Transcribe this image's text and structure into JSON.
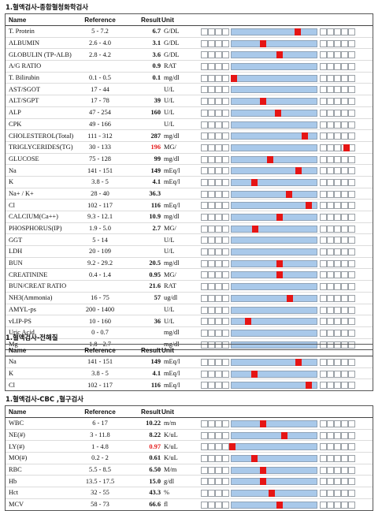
{
  "colors": {
    "normal_zone": "#a9c9ea",
    "marker": "#e51515",
    "abnormal_text": "#e41c1c"
  },
  "headers": {
    "name": "Name",
    "reference": "Reference",
    "result": "Result",
    "unit": "Unit"
  },
  "sections": [
    {
      "title": "1.혈액검사-종합혈청화학검사",
      "rows": [
        {
          "name": "T. Protein",
          "ref": "5 - 7.2",
          "result": "6.7",
          "unit": "G/DL",
          "level": 0.79
        },
        {
          "name": "ALBUMIN",
          "ref": "2.6 - 4.0",
          "result": "3.1",
          "unit": "G/DL",
          "level": 0.36
        },
        {
          "name": "GLOBULIN (TP-ALB)",
          "ref": "2.8 - 4.2",
          "result": "3.6",
          "unit": "G/DL",
          "level": 0.57
        },
        {
          "name": "A/G RATIO",
          "ref": "",
          "result": "0.9",
          "unit": "RAT",
          "level": null
        },
        {
          "name": "T. Bilirubin",
          "ref": "0.1 - 0.5",
          "result": "0.1",
          "unit": "mg/dl",
          "level": 0.0
        },
        {
          "name": "AST/SGOT",
          "ref": "17 - 44",
          "result": "",
          "unit": "U/L",
          "level": null
        },
        {
          "name": "ALT/SGPT",
          "ref": "17 - 78",
          "result": "39",
          "unit": "U/L",
          "level": 0.36
        },
        {
          "name": "ALP",
          "ref": "47 - 254",
          "result": "160",
          "unit": "U/L",
          "level": 0.55
        },
        {
          "name": "CPK",
          "ref": "49 - 166",
          "result": "",
          "unit": "U/L",
          "level": null
        },
        {
          "name": "CHOLESTEROL(Total)",
          "ref": "111 - 312",
          "result": "287",
          "unit": "mg/dl",
          "level": 0.88
        },
        {
          "name": "TRIGLYCERIDES(TG)",
          "ref": "30 - 133",
          "result": "196",
          "unit": "MG/",
          "level": 1.0,
          "high": true
        },
        {
          "name": "GLUCOSE",
          "ref": "75 - 128",
          "result": "99",
          "unit": "mg/dl",
          "level": 0.45
        },
        {
          "name": "Na",
          "ref": "141 - 151",
          "result": "149",
          "unit": "mEq/l",
          "level": 0.8
        },
        {
          "name": "K",
          "ref": "3.8 - 5",
          "result": "4.1",
          "unit": "mEq/l",
          "level": 0.25
        },
        {
          "name": "Na+ / K+",
          "ref": "28 - 40",
          "result": "36.3",
          "unit": "",
          "level": 0.69
        },
        {
          "name": "Cl",
          "ref": "102 - 117",
          "result": "116",
          "unit": "mEq/l",
          "level": 0.93
        },
        {
          "name": "CALCIUM(Ca++)",
          "ref": "9.3 - 12.1",
          "result": "10.9",
          "unit": "mg/dl",
          "level": 0.57
        },
        {
          "name": "PHOSPHORUS(IP)",
          "ref": "1.9 - 5.0",
          "result": "2.7",
          "unit": "MG/",
          "level": 0.26
        },
        {
          "name": "GGT",
          "ref": "5 - 14",
          "result": "",
          "unit": "U/L",
          "level": null
        },
        {
          "name": "LDH",
          "ref": "20 - 109",
          "result": "",
          "unit": "U/L",
          "level": null
        },
        {
          "name": "BUN",
          "ref": "9.2 - 29.2",
          "result": "20.5",
          "unit": "mg/dl",
          "level": 0.57
        },
        {
          "name": "CREATININE",
          "ref": "0.4 - 1.4",
          "result": "0.95",
          "unit": "MG/",
          "level": 0.57
        },
        {
          "name": "BUN/CREAT RATIO",
          "ref": "",
          "result": "21.6",
          "unit": "RAT",
          "level": null
        },
        {
          "name": "NH3(Ammonia)",
          "ref": "16 - 75",
          "result": "57",
          "unit": "ug/dl",
          "level": 0.7
        },
        {
          "name": "AMYL-ps",
          "ref": "200 - 1400",
          "result": "",
          "unit": "U/L",
          "level": null
        },
        {
          "name": "vLIP-PS",
          "ref": "10 - 160",
          "result": "36",
          "unit": "U/L",
          "level": 0.18
        },
        {
          "name": "Uric Acid",
          "ref": "0 - 0.7",
          "result": "",
          "unit": "mg/dl",
          "level": null
        },
        {
          "name": "Mg",
          "ref": "1.8 - 2.7",
          "result": "",
          "unit": "mg/dl",
          "level": null
        }
      ]
    },
    {
      "title": "1.혈액검사-전해질",
      "rows": [
        {
          "name": "Na",
          "ref": "141 - 151",
          "result": "149",
          "unit": "mEq/l",
          "level": 0.8
        },
        {
          "name": "K",
          "ref": "3.8 - 5",
          "result": "4.1",
          "unit": "mEq/l",
          "level": 0.25
        },
        {
          "name": "Cl",
          "ref": "102 - 117",
          "result": "116",
          "unit": "mEq/l",
          "level": 0.93
        }
      ]
    },
    {
      "title": "1.혈액검사-CBC ,혈구검사",
      "rows": [
        {
          "name": "WBC",
          "ref": "6 - 17",
          "result": "10.22",
          "unit": "m/m",
          "level": 0.36
        },
        {
          "name": "NE(#)",
          "ref": "3 - 11.8",
          "result": "8.22",
          "unit": "K/uL",
          "level": 0.63
        },
        {
          "name": "LY(#)",
          "ref": "1 - 4.8",
          "result": "0.97",
          "unit": "K/uL",
          "level": 0.0,
          "high": true
        },
        {
          "name": "MO(#)",
          "ref": "0.2 - 2",
          "result": "0.61",
          "unit": "K/uL",
          "level": 0.25
        },
        {
          "name": "RBC",
          "ref": "5.5 - 8.5",
          "result": "6.50",
          "unit": "M/m",
          "level": 0.36
        },
        {
          "name": "Hb",
          "ref": "13.5 - 17.5",
          "result": "15.0",
          "unit": "g/dl",
          "level": 0.36
        },
        {
          "name": "Hct",
          "ref": "32 - 55",
          "result": "43.3",
          "unit": "%",
          "level": 0.47
        },
        {
          "name": "MCV",
          "ref": "58 - 73",
          "result": "66.6",
          "unit": "fl",
          "level": 0.57
        }
      ]
    }
  ]
}
